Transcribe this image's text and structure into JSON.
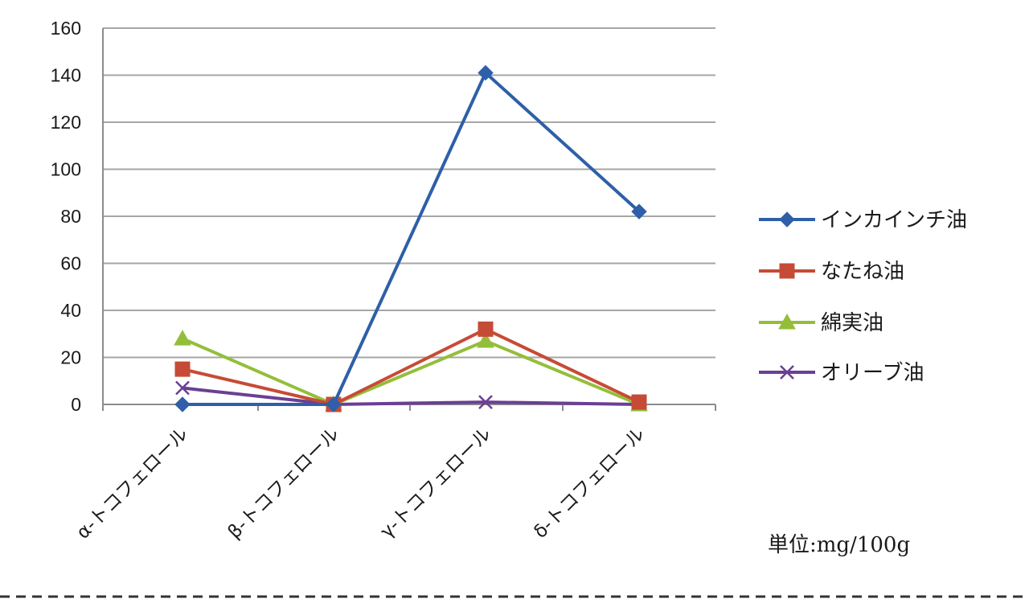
{
  "chart_data": {
    "type": "line",
    "categories": [
      "α-トコフェロール",
      "β-トコフェロール",
      "γ-トコフェロール",
      "δ-トコフェロール"
    ],
    "series": [
      {
        "name": "インカインチ油",
        "values": [
          0,
          0,
          141,
          82
        ],
        "color": "#2E5FA8",
        "marker": "diamond"
      },
      {
        "name": "なたね油",
        "values": [
          15,
          0,
          32,
          1
        ],
        "color": "#C64B36",
        "marker": "square"
      },
      {
        "name": "綿実油",
        "values": [
          28,
          0,
          27,
          0
        ],
        "color": "#94BE3A",
        "marker": "triangle"
      },
      {
        "name": "オリーブ油",
        "values": [
          7,
          0,
          1,
          0
        ],
        "color": "#6A3F94",
        "marker": "x"
      }
    ],
    "ylim": [
      0,
      160
    ],
    "yticks": [
      0,
      20,
      40,
      60,
      80,
      100,
      120,
      140,
      160
    ],
    "grid": true,
    "legend_position": "right",
    "unit_note": "単位:mg/100g"
  }
}
